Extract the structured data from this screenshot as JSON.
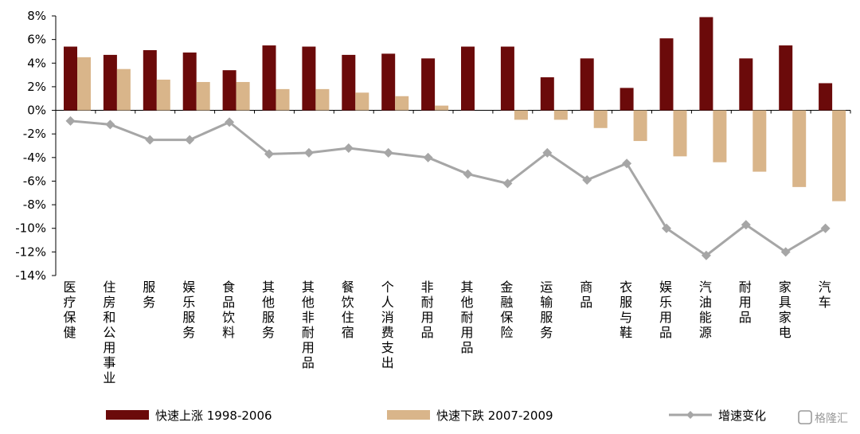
{
  "chart_data": {
    "type": "bar",
    "categories": [
      "医疗保健",
      "住房和公用事业",
      "服务",
      "娱乐服务",
      "食品饮料",
      "其他服务",
      "其他非耐用品",
      "餐饮住宿",
      "个人消费支出",
      "非耐用品",
      "其他耐用品",
      "金融保险",
      "运输服务",
      "商品",
      "衣服与鞋",
      "娱乐用品",
      "汽油能源",
      "耐用品",
      "家具家电",
      "汽车"
    ],
    "series": [
      {
        "name": "快速上涨 1998-2006",
        "type": "bar",
        "color": "#6b0a0a",
        "values": [
          5.4,
          4.7,
          5.1,
          4.9,
          3.4,
          5.5,
          5.4,
          4.7,
          4.8,
          4.4,
          5.4,
          5.4,
          2.8,
          4.4,
          1.9,
          6.1,
          7.9,
          4.4,
          5.5,
          2.3
        ]
      },
      {
        "name": "快速下跌 2007-2009",
        "type": "bar",
        "color": "#d9b58a",
        "values": [
          4.5,
          3.5,
          2.6,
          2.4,
          2.4,
          1.8,
          1.8,
          1.5,
          1.2,
          0.4,
          0.0,
          -0.8,
          -0.8,
          -1.5,
          -2.6,
          -3.9,
          -4.4,
          -5.2,
          -6.5,
          -7.7
        ]
      },
      {
        "name": "增速变化",
        "type": "line",
        "color": "#a6a6a6",
        "values": [
          -0.9,
          -1.2,
          -2.5,
          -2.5,
          -1.0,
          -3.7,
          -3.6,
          -3.2,
          -3.6,
          -4.0,
          -5.4,
          -6.2,
          -3.6,
          -5.9,
          -4.5,
          -10.0,
          -12.3,
          -9.7,
          -12.0,
          -10.0
        ]
      }
    ],
    "yticks": [
      "8%",
      "6%",
      "4%",
      "2%",
      "0%",
      "-2%",
      "-4%",
      "-6%",
      "-8%",
      "-10%",
      "-12%",
      "-14%"
    ],
    "ylim": [
      -14,
      8
    ],
    "legend_position": "bottom"
  },
  "watermark": "格隆汇"
}
